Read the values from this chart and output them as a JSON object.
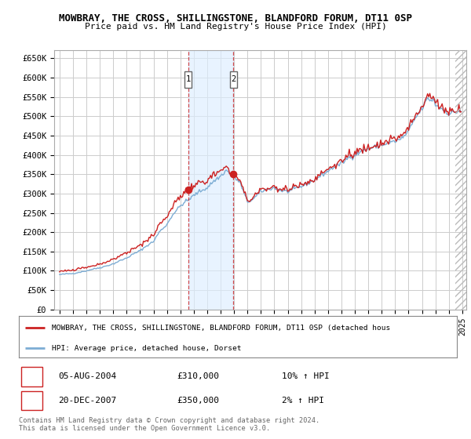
{
  "title1": "MOWBRAY, THE CROSS, SHILLINGSTONE, BLANDFORD FORUM, DT11 0SP",
  "title2": "Price paid vs. HM Land Registry's House Price Index (HPI)",
  "ylabel_ticks": [
    "£0",
    "£50K",
    "£100K",
    "£150K",
    "£200K",
    "£250K",
    "£300K",
    "£350K",
    "£400K",
    "£450K",
    "£500K",
    "£550K",
    "£600K",
    "£650K"
  ],
  "ytick_vals": [
    0,
    50000,
    100000,
    150000,
    200000,
    250000,
    300000,
    350000,
    400000,
    450000,
    500000,
    550000,
    600000,
    650000
  ],
  "hpi_color": "#7dadd4",
  "price_color": "#cc2222",
  "sale1_date": "05-AUG-2004",
  "sale1_price": 310000,
  "sale1_pct": "10%",
  "sale1_dir": "↑",
  "sale1_year": 2004.58,
  "sale2_date": "20-DEC-2007",
  "sale2_price": 350000,
  "sale2_dir": "↑",
  "sale2_pct": "2%",
  "sale2_year": 2007.96,
  "legend_line1": "MOWBRAY, THE CROSS, SHILLINGSTONE, BLANDFORD FORUM, DT11 0SP (detached hous",
  "legend_line2": "HPI: Average price, detached house, Dorset",
  "footnote1": "Contains HM Land Registry data © Crown copyright and database right 2024.",
  "footnote2": "This data is licensed under the Open Government Licence v3.0.",
  "background_color": "#ffffff",
  "grid_color": "#cccccc"
}
